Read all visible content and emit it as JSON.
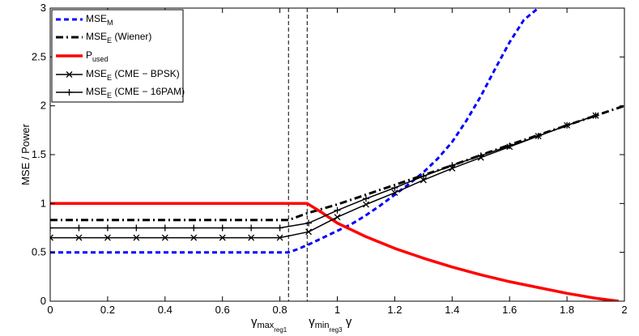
{
  "chart_data": {
    "type": "line",
    "title": "",
    "xlabel": "γ",
    "ylabel": "MSE / Power",
    "xlim": [
      0,
      2
    ],
    "ylim": [
      0,
      3
    ],
    "xticks": [
      0,
      0.2,
      0.4,
      0.6,
      0.8,
      1,
      1.2,
      1.4,
      1.6,
      1.8,
      2
    ],
    "xtick_labels": [
      "0",
      "0.2",
      "0.4",
      "0.6",
      "0.8",
      "1",
      "1.2",
      "1.4",
      "1.6",
      "1.8",
      "2"
    ],
    "yticks": [
      0,
      0.5,
      1,
      1.5,
      2,
      2.5,
      3
    ],
    "ytick_labels": [
      "0",
      "0.5",
      "1",
      "1.5",
      "2",
      "2.5",
      "3"
    ],
    "grid": false,
    "legend_position": "top-left",
    "vlines": [
      {
        "x": 0.83,
        "label_main": "γ",
        "label_sub": "max",
        "label_subsub": "reg1"
      },
      {
        "x": 0.895,
        "label_main": "γ",
        "label_sub": "min",
        "label_subsub": "reg3"
      }
    ],
    "series": [
      {
        "name": "MSE_M",
        "legend_main": "MSE",
        "legend_sub": "M",
        "legend_rest": "",
        "color": "#0000ff",
        "style": "dotted",
        "marker": "none",
        "x": [
          0,
          0.83,
          0.86,
          0.9,
          0.95,
          1.0,
          1.05,
          1.1,
          1.15,
          1.2,
          1.25,
          1.3,
          1.35,
          1.4,
          1.45,
          1.5,
          1.55,
          1.6,
          1.65,
          1.7
        ],
        "y": [
          0.5,
          0.5,
          0.53,
          0.58,
          0.65,
          0.72,
          0.79,
          0.88,
          0.98,
          1.09,
          1.2,
          1.32,
          1.46,
          1.63,
          1.85,
          2.1,
          2.38,
          2.65,
          2.88,
          3.0
        ]
      },
      {
        "name": "MSE_E (Wiener)",
        "legend_main": "MSE",
        "legend_sub": "E",
        "legend_rest": " (Wiener)",
        "color": "#000000",
        "style": "dashdot",
        "marker": "none",
        "x": [
          0,
          0.83,
          0.895,
          1.0,
          1.2,
          1.4,
          1.6,
          1.8,
          2.0
        ],
        "y": [
          0.83,
          0.83,
          0.9,
          0.99,
          1.19,
          1.39,
          1.6,
          1.8,
          2.0
        ]
      },
      {
        "name": "P_used",
        "legend_main": "P",
        "legend_sub": "used",
        "legend_rest": "",
        "color": "#ff0000",
        "style": "solid",
        "marker": "none",
        "x": [
          0,
          0.895,
          0.95,
          1.0,
          1.1,
          1.2,
          1.3,
          1.4,
          1.5,
          1.6,
          1.7,
          1.8,
          1.9,
          1.98
        ],
        "y": [
          1.0,
          1.0,
          0.9,
          0.8,
          0.66,
          0.54,
          0.44,
          0.35,
          0.27,
          0.2,
          0.14,
          0.08,
          0.03,
          0.0
        ]
      },
      {
        "name": "MSE_E (CME - BPSK)",
        "legend_main": "MSE",
        "legend_sub": "E",
        "legend_rest": " (CME − BPSK)",
        "color": "#000000",
        "style": "solid",
        "marker": "x",
        "x": [
          0,
          0.1,
          0.2,
          0.3,
          0.4,
          0.5,
          0.6,
          0.7,
          0.8,
          0.9,
          1.0,
          1.1,
          1.2,
          1.3,
          1.4,
          1.5,
          1.6,
          1.7,
          1.8,
          1.9
        ],
        "y": [
          0.65,
          0.65,
          0.65,
          0.65,
          0.65,
          0.65,
          0.65,
          0.65,
          0.65,
          0.71,
          0.86,
          0.99,
          1.11,
          1.24,
          1.36,
          1.47,
          1.58,
          1.69,
          1.8,
          1.9
        ]
      },
      {
        "name": "MSE_E (CME - 16PAM)",
        "legend_main": "MSE",
        "legend_sub": "E",
        "legend_rest": " (CME − 16PAM)",
        "color": "#000000",
        "style": "solid",
        "marker": "plus",
        "x": [
          0,
          0.1,
          0.2,
          0.3,
          0.4,
          0.5,
          0.6,
          0.7,
          0.8,
          0.9,
          1.0,
          1.1,
          1.2,
          1.3,
          1.4,
          1.5,
          1.6,
          1.7,
          1.8,
          1.9
        ],
        "y": [
          0.75,
          0.75,
          0.75,
          0.75,
          0.75,
          0.75,
          0.75,
          0.75,
          0.75,
          0.8,
          0.93,
          1.05,
          1.16,
          1.28,
          1.39,
          1.49,
          1.59,
          1.69,
          1.8,
          1.9
        ]
      }
    ]
  }
}
